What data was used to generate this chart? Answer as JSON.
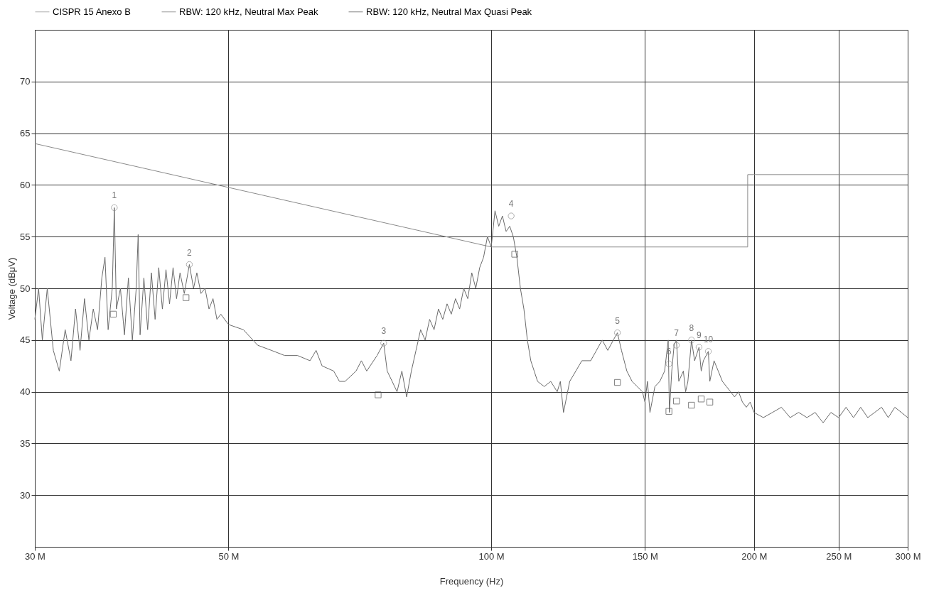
{
  "chart_data": {
    "type": "line",
    "xlabel": "Frequency (Hz)",
    "ylabel": "Voltage (dBμV)",
    "log": "x",
    "grid": true,
    "legend": "top",
    "xlim": [
      30000000.0,
      300000000.0
    ],
    "xticks": [
      {
        "value": 30000000.0,
        "label": "30 M"
      },
      {
        "value": 50000000.0,
        "label": "50 M"
      },
      {
        "value": 100000000.0,
        "label": "100 M"
      },
      {
        "value": 150000000.0,
        "label": "150 M"
      },
      {
        "value": 200000000.0,
        "label": "200 M"
      },
      {
        "value": 250000000.0,
        "label": "250 M"
      },
      {
        "value": 300000000.0,
        "label": "300 M"
      }
    ],
    "ylim": [
      25,
      75
    ],
    "yticks": [
      30,
      35,
      40,
      45,
      50,
      55,
      60,
      65,
      70
    ],
    "series": [
      {
        "name": "CISPR 15 Anexo B",
        "color": "#8a8a8a",
        "x": [
          30000000.0,
          100000000.0,
          196700000.0,
          196700000.0,
          300000000.0
        ],
        "values": [
          64,
          54,
          54,
          61,
          61
        ]
      },
      {
        "name": "RBW: 120 kHz, Neutral Max Peak",
        "color": "#6a6a6a",
        "x": [
          30000000.0,
          30300000.0,
          30600000.0,
          31000000.0,
          31500000.0,
          32000000.0,
          32500000.0,
          33000000.0,
          33400000.0,
          33800000.0,
          34200000.0,
          34600000.0,
          35000000.0,
          35400000.0,
          35800000.0,
          36100000.0,
          36400000.0,
          36800000.0,
          37000000.0,
          37200000.0,
          37600000.0,
          38000000.0,
          38400000.0,
          38800000.0,
          39200000.0,
          39400000.0,
          39600000.0,
          40000000.0,
          40400000.0,
          40800000.0,
          41200000.0,
          41600000.0,
          42000000.0,
          42400000.0,
          42800000.0,
          43200000.0,
          43600000.0,
          44000000.0,
          44500000.0,
          45100000.0,
          45600000.0,
          46000000.0,
          46500000.0,
          47000000.0,
          47500000.0,
          48000000.0,
          48500000.0,
          49000000.0,
          50000000.0,
          52000000.0,
          54000000.0,
          56000000.0,
          58000000.0,
          60000000.0,
          62000000.0,
          63000000.0,
          64000000.0,
          66000000.0,
          67000000.0,
          68000000.0,
          70000000.0,
          71000000.0,
          72000000.0,
          74000000.0,
          75300000.0,
          76000000.0,
          77000000.0,
          78000000.0,
          79000000.0,
          80000000.0,
          81000000.0,
          82000000.0,
          83000000.0,
          84000000.0,
          85000000.0,
          86000000.0,
          87000000.0,
          88000000.0,
          89000000.0,
          90000000.0,
          91000000.0,
          92000000.0,
          93000000.0,
          94000000.0,
          95000000.0,
          96000000.0,
          97000000.0,
          98000000.0,
          99000000.0,
          100000000.0,
          101000000.0,
          102000000.0,
          103000000.0,
          104000000.0,
          105000000.0,
          106000000.0,
          107000000.0,
          108000000.0,
          109000000.0,
          110000000.0,
          111000000.0,
          112000000.0,
          113000000.0,
          115000000.0,
          117000000.0,
          119000000.0,
          120000000.0,
          121000000.0,
          123000000.0,
          125000000.0,
          127000000.0,
          130000000.0,
          132000000.0,
          134000000.0,
          136000000.0,
          138000000.0,
          139500000.0,
          141000000.0,
          143000000.0,
          145000000.0,
          147000000.0,
          149000000.0,
          150000000.0,
          151000000.0,
          152000000.0,
          154000000.0,
          156000000.0,
          158000000.0,
          159500000.0,
          160000000.0,
          161000000.0,
          162000000.0,
          163000000.0,
          164000000.0,
          166000000.0,
          167000000.0,
          168000000.0,
          169600000.0,
          171000000.0,
          173000000.0,
          174000000.0,
          175000000.0,
          177300000.0,
          178000000.0,
          180000000.0,
          182000000.0,
          184000000.0,
          186000000.0,
          188000000.0,
          190000000.0,
          192000000.0,
          194000000.0,
          196000000.0,
          198000000.0,
          200000000.0,
          205000000.0,
          210000000.0,
          215000000.0,
          220000000.0,
          225000000.0,
          230000000.0,
          235000000.0,
          240000000.0,
          245000000.0,
          250000000.0,
          255000000.0,
          260000000.0,
          265000000.0,
          270000000.0,
          275000000.0,
          280000000.0,
          285000000.0,
          290000000.0,
          295000000.0,
          300000000.0
        ],
        "values": [
          47,
          50,
          45,
          50,
          44,
          42,
          46,
          43,
          48,
          44,
          49,
          45,
          48,
          46,
          51,
          53,
          46,
          50,
          57.8,
          48,
          50,
          45.5,
          51,
          45,
          50,
          55.2,
          45.5,
          51,
          46,
          51.5,
          47,
          52,
          48,
          51.8,
          48.5,
          52,
          49,
          51.5,
          49.5,
          52.3,
          50,
          51.5,
          49.5,
          50,
          48,
          49,
          47,
          47.5,
          46.5,
          46,
          44.5,
          44,
          43.5,
          43.5,
          43,
          44,
          42.5,
          42,
          41,
          41,
          42,
          43,
          42,
          43.5,
          44.7,
          42,
          41,
          40,
          42,
          39.5,
          42,
          44,
          46,
          45,
          47,
          46,
          48,
          47,
          48.5,
          47.5,
          49,
          48,
          50,
          49,
          51.5,
          50,
          52,
          53,
          55,
          54,
          57.5,
          56,
          57,
          55.5,
          56,
          55,
          53,
          50,
          48,
          45,
          43,
          42,
          41,
          40.5,
          41,
          40,
          41,
          38,
          41,
          42,
          43,
          43,
          44,
          45,
          44,
          45,
          45.7,
          44,
          42,
          41,
          40.5,
          40,
          39,
          41,
          38,
          40.5,
          41,
          42,
          45,
          38,
          42,
          44.5,
          45,
          41,
          42,
          40,
          41,
          45,
          43,
          44.3,
          42,
          43,
          43.9,
          41,
          43,
          42,
          41,
          40.5,
          40,
          39.5,
          40,
          39,
          38.5,
          39,
          38,
          37.5,
          38,
          38.5,
          37.5,
          38,
          37.5,
          38,
          37,
          38,
          37.5,
          38.5,
          37.5,
          38.5,
          37.5,
          38,
          38.5,
          37.5,
          38.5,
          38,
          37.5
        ]
      },
      {
        "name": "RBW: 120 kHz, Neutral Max Quasi Peak",
        "type": "scatter",
        "marker": "square",
        "color": "#4a4a4a",
        "x": [
          36900000.0,
          44700000.0,
          74200000.0,
          106400000.0,
          139500000.0,
          159800000.0,
          163000000.0,
          169600000.0,
          174000000.0,
          178000000.0
        ],
        "values": [
          47.5,
          49.1,
          39.7,
          53.3,
          40.9,
          38.1,
          39.1,
          38.7,
          39.3,
          39.0
        ]
      },
      {
        "type": "scatter",
        "marker": "circle",
        "color": "#8a8a8a",
        "x": [
          37000000.0,
          45100000.0,
          75300000.0,
          105400000.0,
          139500000.0,
          159800000.0,
          163000000.0,
          169600000.0,
          173000000.0,
          177300000.0
        ],
        "values": [
          57.8,
          52.3,
          44.7,
          57,
          45.7,
          42.7,
          44.5,
          45,
          44.3,
          43.9
        ]
      }
    ],
    "annotations": [
      {
        "text": "1",
        "x": 37000000.0,
        "y": 57.8
      },
      {
        "text": "2",
        "x": 45100000.0,
        "y": 52.3
      },
      {
        "text": "3",
        "x": 75300000.0,
        "y": 44.7
      },
      {
        "text": "4",
        "x": 105400000.0,
        "y": 57
      },
      {
        "text": "5",
        "x": 139500000.0,
        "y": 45.7
      },
      {
        "text": "6",
        "x": 159800000.0,
        "y": 42.7
      },
      {
        "text": "7",
        "x": 163000000.0,
        "y": 44.5
      },
      {
        "text": "8",
        "x": 169600000.0,
        "y": 45
      },
      {
        "text": "9",
        "x": 173000000.0,
        "y": 44.3
      },
      {
        "text": "10",
        "x": 177300000.0,
        "y": 43.9
      }
    ]
  }
}
